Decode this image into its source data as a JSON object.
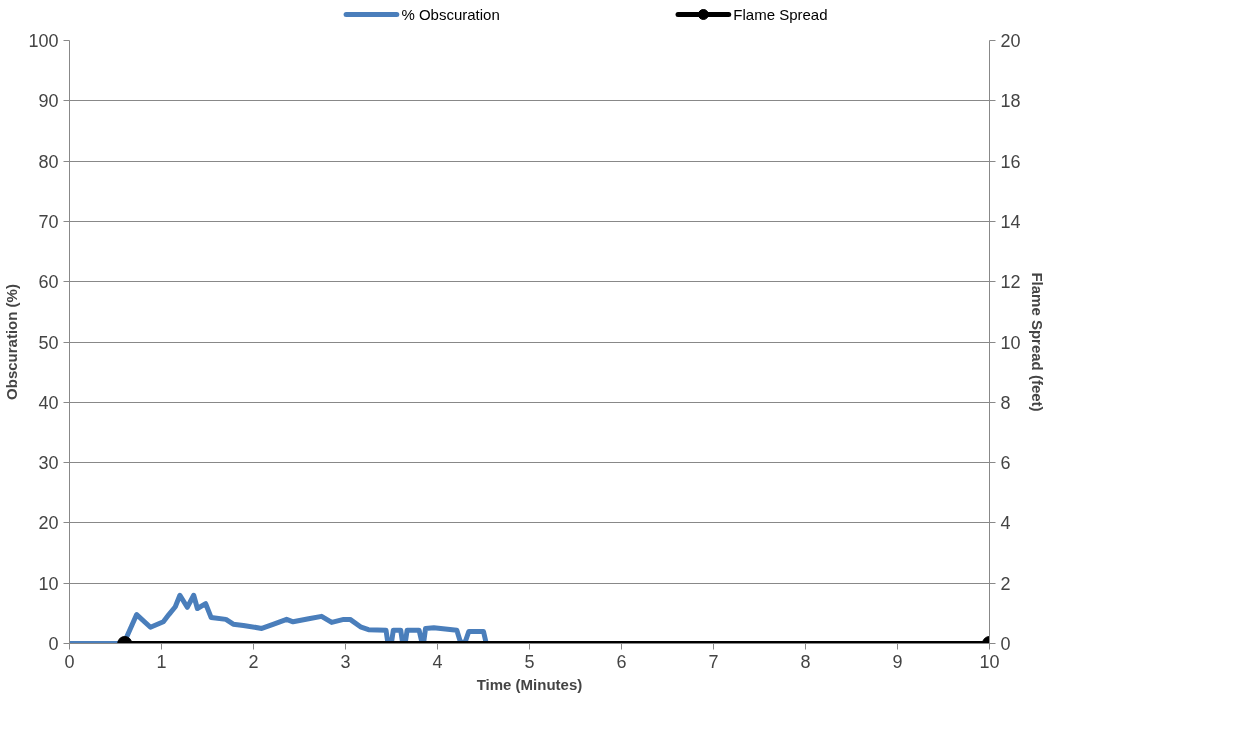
{
  "chart_data": {
    "type": "line",
    "xlabel": "Time (Minutes)",
    "ylabel": "Obscuration (%)",
    "y2label": "Flame Spread (feet)",
    "xlim": [
      0,
      10
    ],
    "xticks": [
      0,
      1,
      2,
      3,
      4,
      5,
      6,
      7,
      8,
      9,
      10
    ],
    "ylim": [
      0,
      100
    ],
    "yticks": [
      0,
      10,
      20,
      30,
      40,
      50,
      60,
      70,
      80,
      90,
      100
    ],
    "y2lim": [
      0,
      20
    ],
    "y2ticks": [
      0,
      2,
      4,
      6,
      8,
      10,
      12,
      14,
      16,
      18,
      20
    ],
    "grid": "y",
    "legend": "top",
    "series": [
      {
        "name": "% Obscuration",
        "color": "#4a7ebb",
        "marker": "none",
        "x": [
          0,
          0.59,
          0.73,
          0.88,
          1.02,
          1.08,
          1.15,
          1.2,
          1.28,
          1.35,
          1.39,
          1.48,
          1.54,
          1.7,
          1.78,
          1.89,
          2.09,
          2.22,
          2.36,
          2.43,
          2.6,
          2.74,
          2.85,
          2.98,
          3.05,
          3.17,
          3.25,
          3.44,
          3.46,
          3.5,
          3.52,
          3.6,
          3.62,
          3.65,
          3.67,
          3.8,
          3.83,
          3.85,
          3.87,
          3.96,
          4.21,
          4.25,
          4.3,
          4.34,
          4.5,
          4.53
        ],
        "values": [
          0,
          0,
          4.8,
          2.7,
          3.6,
          4.8,
          6.1,
          8.0,
          6.0,
          8.0,
          5.8,
          6.6,
          4.3,
          4.0,
          3.2,
          3.0,
          2.5,
          3.2,
          4.0,
          3.6,
          4.1,
          4.5,
          3.5,
          4.0,
          4.0,
          2.7,
          2.3,
          2.2,
          0.2,
          0.2,
          2.2,
          2.2,
          0.2,
          0.2,
          2.2,
          2.2,
          0.2,
          0.2,
          2.5,
          2.6,
          2.2,
          0.2,
          0.2,
          2.0,
          2.0,
          0
        ]
      },
      {
        "name": "Flame Spread",
        "color": "#000000",
        "marker": "circle",
        "x": [
          0.6,
          10
        ],
        "values": [
          0,
          0
        ]
      }
    ]
  }
}
